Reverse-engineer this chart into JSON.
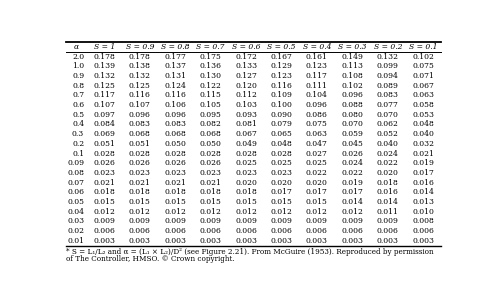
{
  "col_headers": [
    "α",
    "S = 1",
    "S = 0.9",
    "S = 0.8",
    "S = 0.7",
    "S = 0.6",
    "S = 0.5",
    "S = 0.4",
    "S = 0.3",
    "S = 0.2",
    "S = 0.1"
  ],
  "rows": [
    [
      "2.0",
      "0.178",
      "0.178",
      "0.177",
      "0.175",
      "0.172",
      "0.167",
      "0.161",
      "0.149",
      "0.132",
      "0.102"
    ],
    [
      "1.0",
      "0.139",
      "0.138",
      "0.137",
      "0.136",
      "0.133",
      "0.129",
      "0.123",
      "0.113",
      "0.099",
      "0.075"
    ],
    [
      "0.9",
      "0.132",
      "0.132",
      "0.131",
      "0.130",
      "0.127",
      "0.123",
      "0.117",
      "0.108",
      "0.094",
      "0.071"
    ],
    [
      "0.8",
      "0.125",
      "0.125",
      "0.124",
      "0.122",
      "0.120",
      "0.116",
      "0.111",
      "0.102",
      "0.089",
      "0.067"
    ],
    [
      "0.7",
      "0.117",
      "0.116",
      "0.116",
      "0.115",
      "0.112",
      "0.109",
      "0.104",
      "0.096",
      "0.083",
      "0.063"
    ],
    [
      "0.6",
      "0.107",
      "0.107",
      "0.106",
      "0.105",
      "0.103",
      "0.100",
      "0.096",
      "0.088",
      "0.077",
      "0.058"
    ],
    [
      "0.5",
      "0.097",
      "0.096",
      "0.096",
      "0.095",
      "0.093",
      "0.090",
      "0.086",
      "0.080",
      "0.070",
      "0.053"
    ],
    [
      "0.4",
      "0.084",
      "0.083",
      "0.083",
      "0.082",
      "0.081",
      "0.079",
      "0.075",
      "0.070",
      "0.062",
      "0.048"
    ],
    [
      "0.3",
      "0.069",
      "0.068",
      "0.068",
      "0.068",
      "0.067",
      "0.065",
      "0.063",
      "0.059",
      "0.052",
      "0.040"
    ],
    [
      "0.2",
      "0.051",
      "0.051",
      "0.050",
      "0.050",
      "0.049",
      "0.048",
      "0.047",
      "0.045",
      "0.040",
      "0.032"
    ],
    [
      "0.1",
      "0.028",
      "0.028",
      "0.028",
      "0.028",
      "0.028",
      "0.028",
      "0.027",
      "0.026",
      "0.024",
      "0.021"
    ],
    [
      "0.09",
      "0.026",
      "0.026",
      "0.026",
      "0.026",
      "0.025",
      "0.025",
      "0.025",
      "0.024",
      "0.022",
      "0.019"
    ],
    [
      "0.08",
      "0.023",
      "0.023",
      "0.023",
      "0.023",
      "0.023",
      "0.023",
      "0.022",
      "0.022",
      "0.020",
      "0.017"
    ],
    [
      "0.07",
      "0.021",
      "0.021",
      "0.021",
      "0.021",
      "0.020",
      "0.020",
      "0.020",
      "0.019",
      "0.018",
      "0.016"
    ],
    [
      "0.06",
      "0.018",
      "0.018",
      "0.018",
      "0.018",
      "0.018",
      "0.017",
      "0.017",
      "0.017",
      "0.016",
      "0.014"
    ],
    [
      "0.05",
      "0.015",
      "0.015",
      "0.015",
      "0.015",
      "0.015",
      "0.015",
      "0.015",
      "0.014",
      "0.014",
      "0.013"
    ],
    [
      "0.04",
      "0.012",
      "0.012",
      "0.012",
      "0.012",
      "0.012",
      "0.012",
      "0.012",
      "0.012",
      "0.011",
      "0.010"
    ],
    [
      "0.03",
      "0.009",
      "0.009",
      "0.009",
      "0.009",
      "0.009",
      "0.009",
      "0.009",
      "0.009",
      "0.009",
      "0.008"
    ],
    [
      "0.02",
      "0.006",
      "0.006",
      "0.006",
      "0.006",
      "0.006",
      "0.006",
      "0.006",
      "0.006",
      "0.006",
      "0.006"
    ],
    [
      "0.01",
      "0.003",
      "0.003",
      "0.003",
      "0.003",
      "0.003",
      "0.003",
      "0.003",
      "0.003",
      "0.003",
      "0.003"
    ]
  ],
  "footnote_line1": "* S = L₁/L₂ and α = (L₁ × L₂)/D² (see Figure 2.21). From McGuire (1953). Reproduced by permission",
  "footnote_line2": "of The Controller, HMSO. © Crown copyright.",
  "bg_color": "#ffffff",
  "text_color": "#000000",
  "header_fontsize": 5.5,
  "data_fontsize": 5.5,
  "footnote_fontsize": 5.2
}
